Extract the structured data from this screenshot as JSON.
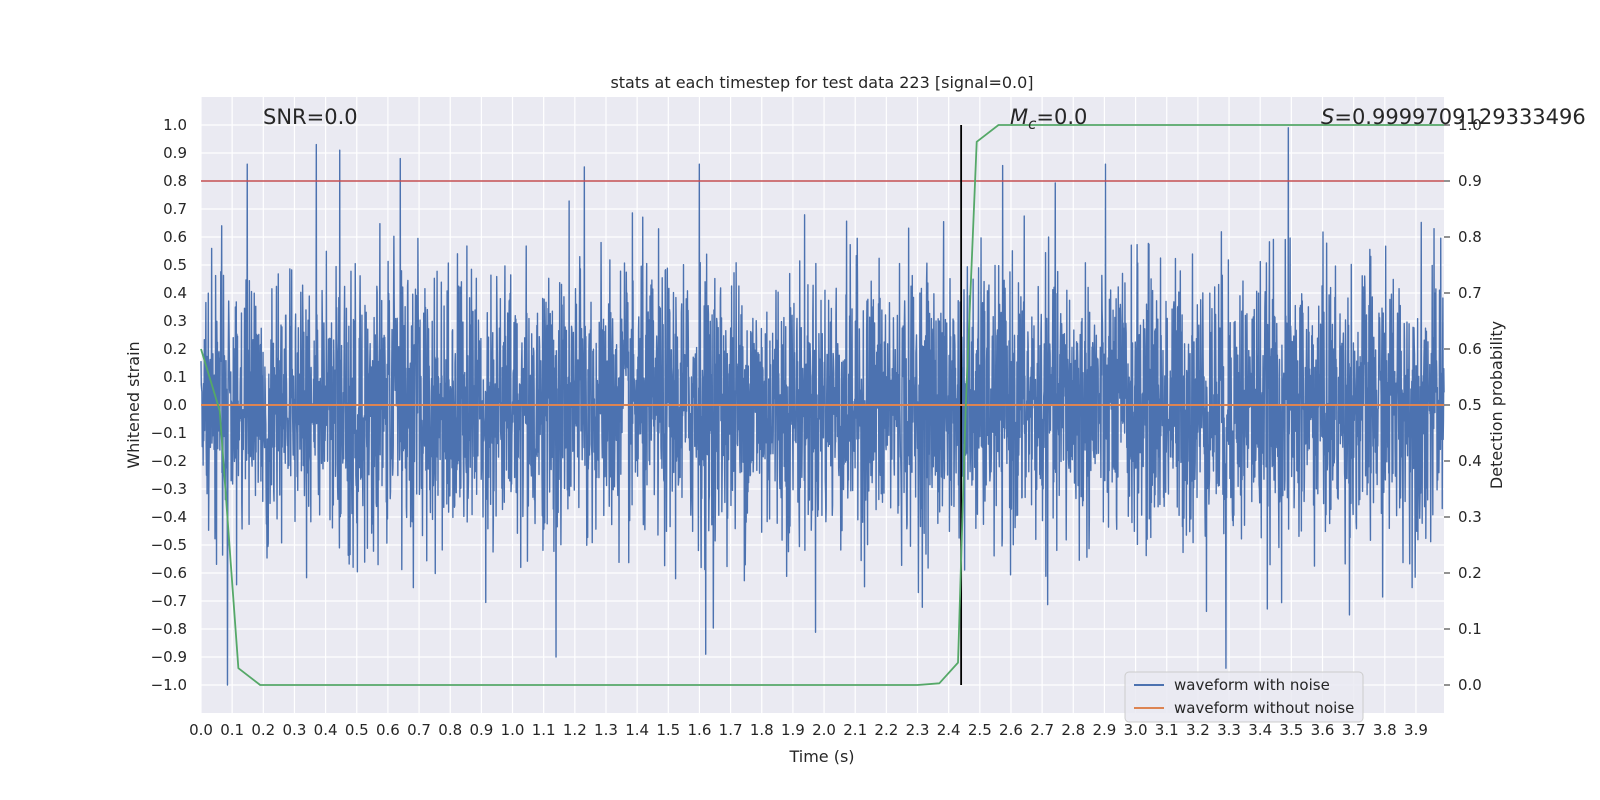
{
  "chart_data": {
    "type": "line",
    "title": "stats at each timestep for test data 223 [signal=0.0]",
    "xlabel": "Time (s)",
    "ylabel": "Whitened strain",
    "y2label": "Detection probability",
    "xlim": [
      0.0,
      3.99
    ],
    "ylim": [
      -1.1,
      1.1
    ],
    "y2lim": [
      -0.05,
      1.05
    ],
    "x_ticks": [
      "0.0",
      "0.1",
      "0.2",
      "0.3",
      "0.4",
      "0.5",
      "0.6",
      "0.7",
      "0.8",
      "0.9",
      "1.0",
      "1.1",
      "1.2",
      "1.3",
      "1.4",
      "1.5",
      "1.6",
      "1.7",
      "1.8",
      "1.9",
      "2.0",
      "2.1",
      "2.2",
      "2.3",
      "2.4",
      "2.5",
      "2.6",
      "2.7",
      "2.8",
      "2.9",
      "3.0",
      "3.1",
      "3.2",
      "3.3",
      "3.4",
      "3.5",
      "3.6",
      "3.7",
      "3.8",
      "3.9"
    ],
    "y_ticks": [
      "1.0",
      "0.9",
      "0.8",
      "0.7",
      "0.6",
      "0.5",
      "0.4",
      "0.3",
      "0.2",
      "0.1",
      "0.0",
      "−0.1",
      "−0.2",
      "−0.3",
      "−0.4",
      "−0.5",
      "−0.6",
      "−0.7",
      "−0.8",
      "−0.9",
      "−1.0"
    ],
    "y2_ticks": [
      "1.0",
      "0.9",
      "0.8",
      "0.7",
      "0.6",
      "0.5",
      "0.4",
      "0.3",
      "0.2",
      "0.1",
      "0.0"
    ],
    "grid": true,
    "legend_placement": "lower-right",
    "legend": [
      "waveform with noise",
      "waveform without noise"
    ],
    "annotations": {
      "snr": "SNR=0.0",
      "mc_symbol": "M",
      "mc_subscript": "c",
      "mc_value": "=0.0",
      "s_symbol": "S",
      "s_value": "=0.9999709129333496"
    },
    "series": [
      {
        "name": "waveform with noise",
        "color": "#4c72b0",
        "axis": "left",
        "sample_rate_hz": 1024,
        "amplitude_std": 0.24,
        "peaks": [
          {
            "x": 0.148,
            "y": 0.86
          },
          {
            "x": 0.37,
            "y": 0.93
          },
          {
            "x": 0.445,
            "y": 0.91
          },
          {
            "x": 1.23,
            "y": 0.85
          },
          {
            "x": 1.6,
            "y": 0.86
          },
          {
            "x": 3.49,
            "y": 0.99
          },
          {
            "x": 0.085,
            "y": -1.0
          },
          {
            "x": 3.29,
            "y": -0.94
          },
          {
            "x": 1.14,
            "y": -0.9
          },
          {
            "x": 1.62,
            "y": -0.89
          }
        ]
      },
      {
        "name": "waveform without noise",
        "color": "#dd8452",
        "axis": "left",
        "x": [
          0.0,
          3.99
        ],
        "y": [
          0.0,
          0.0
        ]
      },
      {
        "name": "Detection probability",
        "color": "#55a868",
        "axis": "right",
        "x": [
          0.0,
          0.06,
          0.12,
          0.19,
          2.0,
          2.3,
          2.37,
          2.43,
          2.455,
          2.49,
          2.56,
          3.99
        ],
        "y": [
          0.6,
          0.49,
          0.03,
          0.0,
          0.0,
          0.0,
          0.003,
          0.04,
          0.5,
          0.97,
          1.0,
          1.0
        ]
      }
    ],
    "reference_lines": [
      {
        "orientation": "horizontal",
        "axis": "right",
        "value": 0.9,
        "color": "#c44e52"
      },
      {
        "orientation": "vertical",
        "x": 2.44,
        "y_from": -1.0,
        "y_to": 1.0,
        "color": "#000000"
      }
    ],
    "colors": {
      "plot_bg": "#eaeaf2",
      "grid": "#ffffff",
      "legend_bg": "#eaeaf2",
      "legend_border": "#cccccc"
    }
  }
}
